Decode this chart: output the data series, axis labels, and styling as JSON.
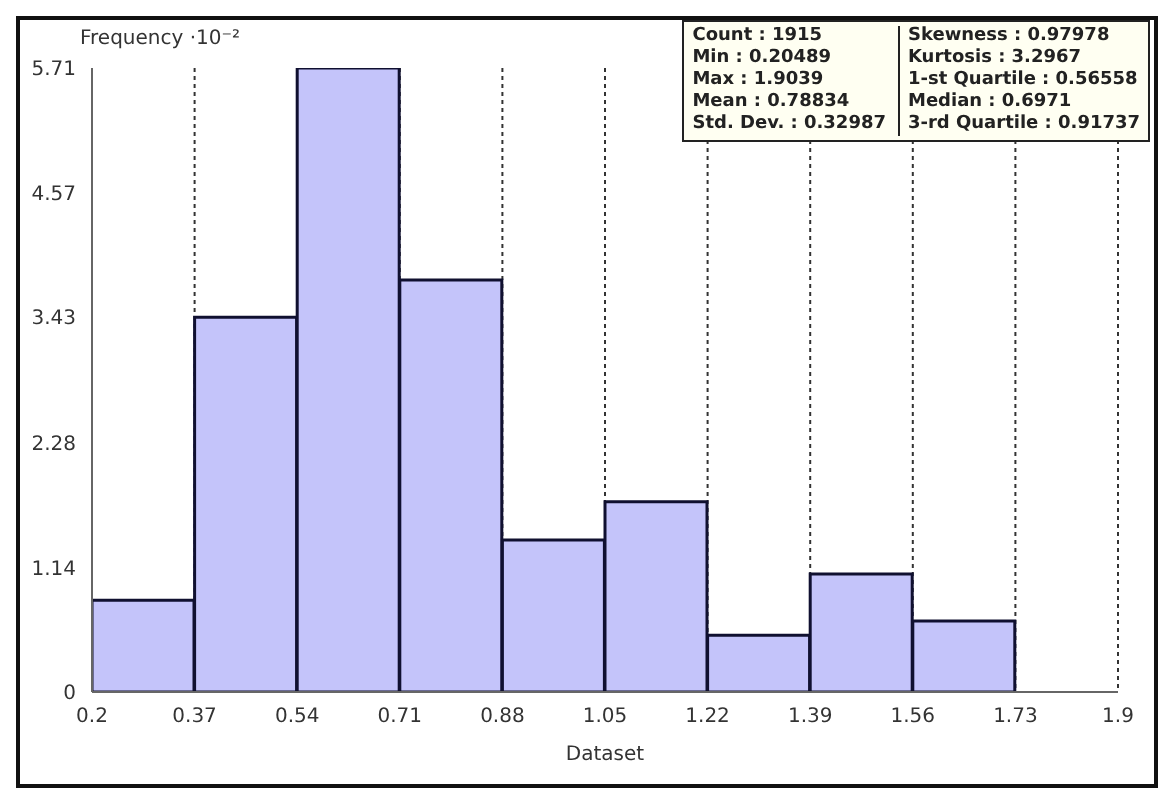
{
  "chart_data": {
    "type": "histogram",
    "xlabel": "Dataset",
    "ylabel": "Frequency ·10⁻²",
    "bins": [
      0.2,
      0.37,
      0.54,
      0.71,
      0.88,
      1.05,
      1.22,
      1.39,
      1.56,
      1.73,
      1.9
    ],
    "values": [
      0.84,
      3.43,
      5.71,
      3.77,
      1.39,
      1.74,
      0.52,
      1.08,
      0.65,
      0
    ],
    "color": "#c4c4fa",
    "xlim": [
      0.2,
      1.9
    ],
    "xticks": [
      0.2,
      0.37,
      0.54,
      0.71,
      0.88,
      1.05,
      1.22,
      1.39,
      1.56,
      1.73,
      1.9
    ],
    "ylim": [
      0,
      5.71
    ],
    "yticks": [
      0,
      1.14,
      2.28,
      3.43,
      4.57,
      5.71
    ],
    "grid": "x",
    "annotations": [
      "Count : 1915",
      "Skewness : 0.97978",
      "Min : 0.20489",
      "Kurtosis : 3.2967",
      "Max : 1.9039",
      "1-st Quartile : 0.56558",
      "Mean : 0.78834",
      "Median : 0.6971",
      "Std. Dev. : 0.32987",
      "3-rd Quartile : 0.91737"
    ]
  }
}
